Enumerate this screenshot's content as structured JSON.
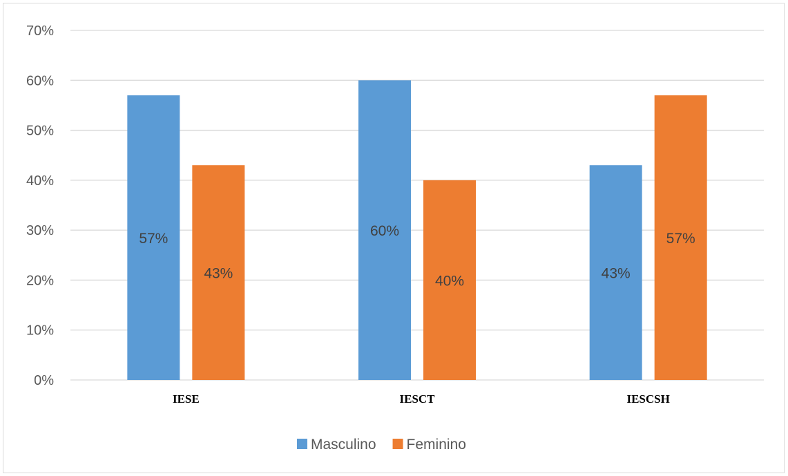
{
  "chart_data": {
    "type": "bar",
    "categories": [
      "IESE",
      "IESCT",
      "IESCSH"
    ],
    "series": [
      {
        "name": "Masculino",
        "values": [
          57,
          60,
          43
        ],
        "labels": [
          "57%",
          "60%",
          "43%"
        ],
        "color": "#5b9bd5"
      },
      {
        "name": "Feminino",
        "values": [
          43,
          40,
          57
        ],
        "labels": [
          "43%",
          "40%",
          "57%"
        ],
        "color": "#ed7d31"
      }
    ],
    "ylim": [
      0,
      70
    ],
    "yticks": [
      0,
      10,
      20,
      30,
      40,
      50,
      60,
      70
    ],
    "ytick_labels": [
      "0%",
      "10%",
      "20%",
      "30%",
      "40%",
      "50%",
      "60%",
      "70%"
    ],
    "grid": true,
    "legend_position": "bottom",
    "gridline_color": "#d9d9d9"
  }
}
